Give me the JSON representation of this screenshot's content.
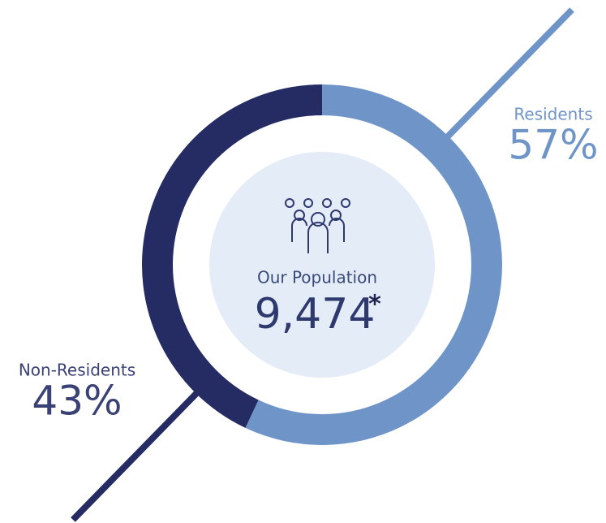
{
  "chart_data": {
    "type": "donut",
    "categories": [
      "Residents",
      "Non-Residents"
    ],
    "values": [
      57,
      43
    ],
    "value_labels": [
      "57%",
      "43%"
    ],
    "colors": [
      "#6f95c8",
      "#252c63"
    ],
    "center_label": "Our Population",
    "center_value": "9,474",
    "center_mark": "*"
  }
}
